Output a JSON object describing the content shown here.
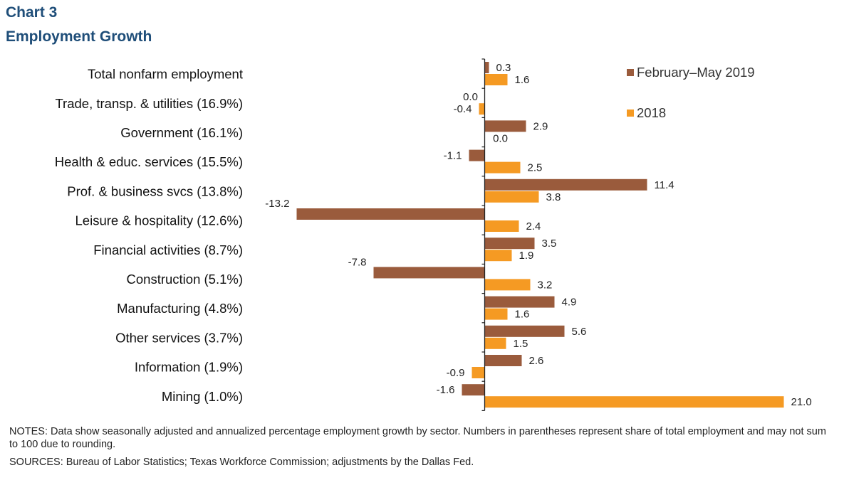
{
  "header": {
    "chart_label": "Chart 3",
    "title": "Employment Growth"
  },
  "footer": {
    "notes": "NOTES: Data show seasonally adjusted and annualized percentage employment growth by sector. Numbers in parentheses represent share of total employment and may not sum to 100 due to rounding.",
    "sources": "SOURCES: Bureau of Labor Statistics; Texas Workforce Commission; adjustments by the Dallas Fed."
  },
  "chart_data": {
    "type": "bar",
    "orientation": "horizontal",
    "title": "Employment Growth",
    "categories": [
      "Total nonfarm employment",
      "Trade, transp. & utilities (16.9%)",
      "Government (16.1%)",
      "Health & educ. services (15.5%)",
      "Prof. & business svcs (13.8%)",
      "Leisure & hospitality (12.6%)",
      "Financial activities (8.7%)",
      "Construction (5.1%)",
      "Manufacturing (4.8%)",
      "Other services (3.7%)",
      "Information (1.9%)",
      "Mining (1.0%)"
    ],
    "series": [
      {
        "name": "February–May 2019",
        "color": "#9a5b3c",
        "values": [
          0.3,
          0.0,
          2.9,
          -1.1,
          11.4,
          -13.2,
          3.5,
          -7.8,
          4.9,
          5.6,
          2.6,
          -1.6
        ],
        "labels": [
          "0.3",
          "0.0",
          "2.9",
          "-1.1",
          "11.4",
          "-13.2",
          "3.5",
          "-7.8",
          "4.9",
          "5.6",
          "2.6",
          "-1.6"
        ]
      },
      {
        "name": "2018",
        "color": "#f59a23",
        "values": [
          1.6,
          -0.4,
          0.0,
          2.5,
          3.8,
          2.4,
          1.9,
          3.2,
          1.6,
          1.5,
          -0.9,
          21.0
        ],
        "labels": [
          "1.6",
          "-0.4",
          "0.0",
          "2.5",
          "3.8",
          "2.4",
          "1.9",
          "3.2",
          "1.6",
          "1.5",
          "-0.9",
          "21.0"
        ]
      }
    ],
    "xlim": [
      -13.2,
      21.0
    ],
    "grid": false,
    "legend": "top-right"
  }
}
